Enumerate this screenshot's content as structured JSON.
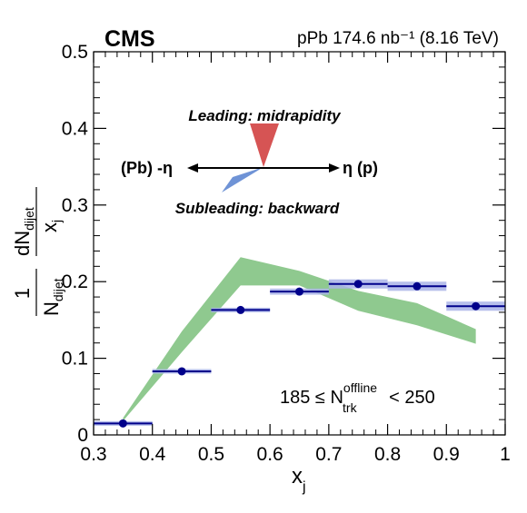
{
  "chart_data": {
    "type": "scatter",
    "experiment": "CMS",
    "luminosity_label": "pPb 174.6 nb⁻¹ (8.16 TeV)",
    "xlabel": "x",
    "xlabel_sub": "j",
    "ylabel": "1/N_dijet dN_dijet/x_j",
    "ylabel_parts": {
      "outer_num": "1",
      "outer_den": "N",
      "outer_den_sub": "dijet",
      "inner_num": "dN",
      "inner_num_sub": "dijet",
      "inner_den": "x",
      "inner_den_sub": "j"
    },
    "xlim": [
      0.3,
      1.0
    ],
    "ylim": [
      0.0,
      0.5
    ],
    "x_ticks": [
      "0.3",
      "0.4",
      "0.5",
      "0.6",
      "0.7",
      "0.8",
      "0.9",
      "1"
    ],
    "y_ticks": [
      "0",
      "0.1",
      "0.2",
      "0.3",
      "0.4",
      "0.5"
    ],
    "grid": false,
    "series": [
      {
        "kind": "data-points",
        "color": "#00008b",
        "syst_color": "#aab4e8",
        "points": [
          {
            "x": 0.35,
            "y": 0.015,
            "xlow": 0.3,
            "xhigh": 0.4,
            "syst": 0.003
          },
          {
            "x": 0.45,
            "y": 0.083,
            "xlow": 0.4,
            "xhigh": 0.5,
            "syst": 0.003
          },
          {
            "x": 0.55,
            "y": 0.163,
            "xlow": 0.5,
            "xhigh": 0.6,
            "syst": 0.003
          },
          {
            "x": 0.65,
            "y": 0.187,
            "xlow": 0.6,
            "xhigh": 0.7,
            "syst": 0.004
          },
          {
            "x": 0.75,
            "y": 0.197,
            "xlow": 0.7,
            "xhigh": 0.8,
            "syst": 0.006
          },
          {
            "x": 0.85,
            "y": 0.194,
            "xlow": 0.8,
            "xhigh": 0.9,
            "syst": 0.006
          },
          {
            "x": 0.95,
            "y": 0.168,
            "xlow": 0.9,
            "xhigh": 1.0,
            "syst": 0.006
          }
        ]
      },
      {
        "kind": "band",
        "color": "#8fc98f",
        "x": [
          0.35,
          0.45,
          0.55,
          0.65,
          0.75,
          0.85,
          0.95
        ],
        "upper": [
          0.022,
          0.135,
          0.232,
          0.214,
          0.188,
          0.172,
          0.138
        ],
        "lower": [
          0.018,
          0.108,
          0.195,
          0.195,
          0.162,
          0.143,
          0.119
        ]
      }
    ],
    "annotations": {
      "leading": "Leading: midrapidity",
      "leading_color": "#d9534f",
      "subleading": "Subleading: backward",
      "subleading_color": "#6f93d6",
      "eta_left": "(Pb) -η",
      "eta_right": "η (p)",
      "multiplicity_pre": "185 ≤ N",
      "multiplicity_sup": "offline",
      "multiplicity_sub": "trk",
      "multiplicity_post": " < 250"
    }
  }
}
